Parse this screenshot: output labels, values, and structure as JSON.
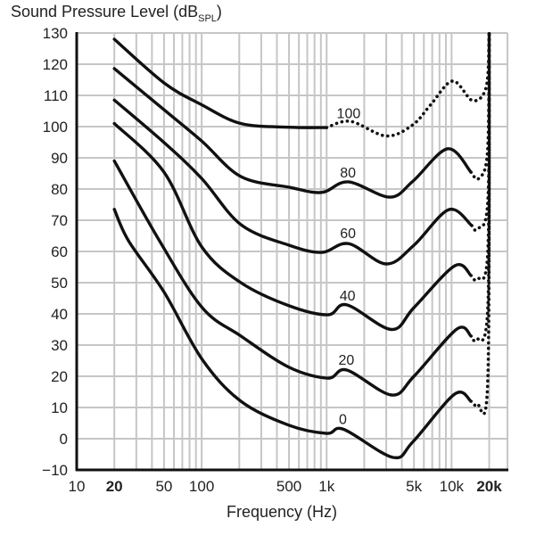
{
  "chart_data": {
    "type": "line",
    "ylabel": {
      "main": "Sound Pressure Level (dB",
      "sub": "SPL",
      "close": ")"
    },
    "xlabel": "Frequency (Hz)",
    "xscale": "log",
    "xlim": [
      10,
      28000
    ],
    "ylim": [
      -10,
      130
    ],
    "grid": true,
    "yticks": [
      -10,
      0,
      10,
      20,
      30,
      40,
      50,
      60,
      70,
      80,
      90,
      100,
      110,
      120,
      130
    ],
    "ytick_labels": [
      "−10",
      "0",
      "10",
      "20",
      "30",
      "40",
      "50",
      "60",
      "70",
      "80",
      "90",
      "100",
      "110",
      "120",
      "130"
    ],
    "xticks": [
      {
        "value": 10,
        "label": "10",
        "bold": false
      },
      {
        "value": 20,
        "label": "20",
        "bold": true
      },
      {
        "value": 50,
        "label": "50",
        "bold": false
      },
      {
        "value": 100,
        "label": "100",
        "bold": false
      },
      {
        "value": 500,
        "label": "500",
        "bold": false
      },
      {
        "value": 1000,
        "label": "1k",
        "bold": false
      },
      {
        "value": 5000,
        "label": "5k",
        "bold": false
      },
      {
        "value": 10000,
        "label": "10k",
        "bold": false
      },
      {
        "value": 20000,
        "label": "20k",
        "bold": true
      }
    ],
    "x_gridlines": [
      20,
      30,
      40,
      50,
      60,
      70,
      80,
      90,
      100,
      200,
      300,
      400,
      500,
      600,
      700,
      800,
      900,
      1000,
      2000,
      3000,
      4000,
      5000,
      6000,
      7000,
      8000,
      9000,
      10000,
      20000,
      28000
    ],
    "series": [
      {
        "name": "100",
        "solid": [
          [
            20,
            128
          ],
          [
            50,
            114
          ],
          [
            100,
            107
          ],
          [
            206,
            101
          ],
          [
            500,
            99.8
          ],
          [
            1000,
            99.7
          ]
        ],
        "dotted": [
          [
            1000,
            99.7
          ],
          [
            1550,
            101.7
          ],
          [
            3000,
            97
          ],
          [
            4900,
            100.6
          ],
          [
            6800,
            107
          ],
          [
            10200,
            114.6
          ],
          [
            14800,
            108.3
          ],
          [
            19000,
            113
          ],
          [
            20000,
            130
          ]
        ]
      },
      {
        "name": "80",
        "solid": [
          [
            20,
            118.6
          ],
          [
            50,
            105.4
          ],
          [
            100,
            95.4
          ],
          [
            206,
            84
          ],
          [
            500,
            80.6
          ],
          [
            910,
            78.9
          ],
          [
            1490,
            82.3
          ],
          [
            3200,
            77.4
          ],
          [
            4900,
            82.5
          ],
          [
            9300,
            92.9
          ],
          [
            14300,
            85.4
          ]
        ],
        "dotted": [
          [
            14300,
            85.4
          ],
          [
            16500,
            83.4
          ],
          [
            19400,
            92
          ],
          [
            20000,
            130
          ]
        ]
      },
      {
        "name": "60",
        "solid": [
          [
            20,
            108.5
          ],
          [
            50,
            94.9
          ],
          [
            100,
            83.4
          ],
          [
            206,
            68.6
          ],
          [
            500,
            62
          ],
          [
            910,
            59.7
          ],
          [
            1500,
            62.5
          ],
          [
            3000,
            56
          ],
          [
            5000,
            62
          ],
          [
            9500,
            73.4
          ],
          [
            14500,
            68.3
          ]
        ],
        "dotted": [
          [
            14500,
            68.3
          ],
          [
            16000,
            67.2
          ],
          [
            19500,
            76
          ],
          [
            20000,
            130
          ]
        ]
      },
      {
        "name": "40",
        "solid": [
          [
            20,
            101
          ],
          [
            50,
            85.4
          ],
          [
            100,
            61.5
          ],
          [
            206,
            50
          ],
          [
            500,
            42.6
          ],
          [
            1020,
            39.7
          ],
          [
            1450,
            42.9
          ],
          [
            3300,
            35
          ],
          [
            5000,
            42
          ],
          [
            10600,
            55.4
          ],
          [
            14300,
            52.3
          ]
        ],
        "dotted": [
          [
            14300,
            52.3
          ],
          [
            16000,
            51.2
          ],
          [
            19500,
            60
          ],
          [
            20000,
            130
          ]
        ]
      },
      {
        "name": "20",
        "solid": [
          [
            20,
            89
          ],
          [
            46,
            63.4
          ],
          [
            101,
            42
          ],
          [
            206,
            32.9
          ],
          [
            500,
            22.9
          ],
          [
            1020,
            19.4
          ],
          [
            1450,
            22
          ],
          [
            3300,
            14
          ],
          [
            5000,
            20
          ],
          [
            11000,
            35.1
          ],
          [
            14300,
            32.9
          ]
        ],
        "dotted": [
          [
            14300,
            32.9
          ],
          [
            15500,
            32
          ],
          [
            19500,
            42
          ],
          [
            20000,
            130
          ]
        ]
      },
      {
        "name": "0",
        "solid": [
          [
            20,
            73.5
          ],
          [
            26,
            63.4
          ],
          [
            50,
            47
          ],
          [
            101,
            25.4
          ],
          [
            206,
            12
          ],
          [
            500,
            4.3
          ],
          [
            1000,
            1.7
          ],
          [
            1370,
            3
          ],
          [
            3400,
            -6
          ],
          [
            4900,
            -1
          ],
          [
            10600,
            14.3
          ],
          [
            14300,
            12
          ]
        ],
        "dotted": [
          [
            14300,
            12
          ],
          [
            16000,
            11.1
          ],
          [
            19500,
            19
          ],
          [
            20000,
            130
          ]
        ]
      }
    ],
    "curve_label_positions": [
      [
        1500,
        104.5
      ],
      [
        1480,
        85.5
      ],
      [
        1480,
        66
      ],
      [
        1470,
        46
      ],
      [
        1440,
        25.5
      ],
      [
        1350,
        6.5
      ]
    ]
  }
}
